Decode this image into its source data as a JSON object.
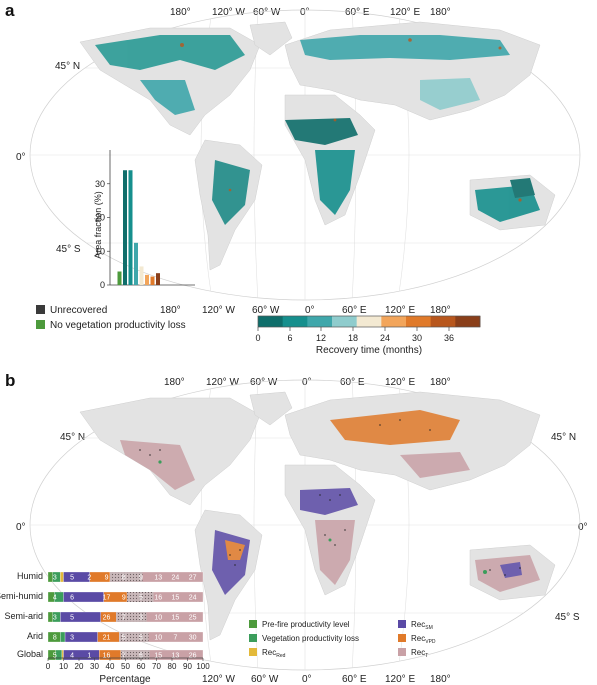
{
  "panel_a": {
    "letter": "a",
    "top_lon_labels": [
      "180°",
      "120° W",
      "60° W",
      "0°",
      "60° E",
      "120° E",
      "180°"
    ],
    "bottom_lon_labels": [
      "180°",
      "120° W",
      "60° W",
      "0°",
      "60° E",
      "120° E",
      "180°"
    ],
    "lat_labels": [
      "45° N",
      "0°",
      "45° S"
    ],
    "legend": {
      "unrecovered": "Unrecovered",
      "no_loss": "No vegetation productivity loss"
    },
    "colorbar": {
      "ticks": [
        "0",
        "6",
        "12",
        "18",
        "24",
        "30",
        "36"
      ],
      "label": "Recovery time (months)",
      "colors": [
        "#0f6e6b",
        "#168f8d",
        "#3fa7ab",
        "#8fcccd",
        "#f3e9d2",
        "#f2a55b",
        "#e07a2a",
        "#b8571d",
        "#8a3f1a"
      ]
    }
  },
  "panel_b": {
    "letter": "b",
    "top_lon_labels": [
      "180°",
      "120° W",
      "60° W",
      "0°",
      "60° E",
      "120° E",
      "180°"
    ],
    "bottom_lon_labels": [
      "120° W",
      "60° W",
      "0°",
      "60° E",
      "120° E",
      "180°"
    ],
    "lat_labels_left": [
      "45° N",
      "0°"
    ],
    "lat_labels_right": [
      "45° N",
      "0°",
      "45° S"
    ],
    "legend": {
      "pre_fire": "Pre-fire productivity level",
      "veg_loss": "Vegetation productivity loss",
      "rec_red": "Rec",
      "rec_red_sub": "Red",
      "rec_sm": "Rec",
      "rec_sm_sub": "SM",
      "rec_vpd": "Rec",
      "rec_vpd_sub": "VPD",
      "rec_t": "Rec",
      "rec_t_sub": "T"
    },
    "colors": {
      "pre_fire": "#4d9a3c",
      "veg_loss": "#3b9d5b",
      "rec_red": "#e3b93a",
      "rec_sm": "#5a4aa5",
      "rec_vpd": "#e07a2a",
      "rec_t": "#c9a1a6"
    },
    "xaxis_label": "Percentage",
    "xticks": [
      "0",
      "10",
      "20",
      "30",
      "40",
      "50",
      "60",
      "70",
      "80",
      "90",
      "100"
    ]
  },
  "chart_data": [
    {
      "type": "bar",
      "title": "",
      "xlabel": "",
      "ylabel": "Area fraction (%)",
      "ylim": [
        0,
        40
      ],
      "yticks": [
        0,
        10,
        20,
        30
      ],
      "categories": [
        "Unrecovered",
        "No vegetation productivity loss",
        "0-6",
        "6-12",
        "12-18",
        "18-24",
        "24-30",
        "30-36",
        ">36"
      ],
      "values": [
        0,
        4,
        34,
        34,
        12.5,
        5.5,
        3,
        2.5,
        3.5
      ]
    },
    {
      "type": "bar",
      "orientation": "horizontal-stacked",
      "xlabel": "Percentage",
      "xlim": [
        0,
        100
      ],
      "categories": [
        "Humid",
        "Semi-humid",
        "Semi-arid",
        "Arid",
        "Global"
      ],
      "series": [
        {
          "name": "Pre-fire productivity level",
          "values": [
            3,
            4,
            3,
            8,
            5
          ]
        },
        {
          "name": "Vegetation productivity loss",
          "values": [
            5,
            6,
            5,
            3,
            4
          ]
        },
        {
          "name": "RecRed",
          "values": [
            2,
            0,
            0,
            0,
            1
          ]
        },
        {
          "name": "RecSM",
          "values": [
            17,
            26,
            26,
            21,
            23
          ]
        },
        {
          "name": "RecVPD",
          "values": [
            13,
            15,
            10,
            14,
            14
          ]
        },
        {
          "name": "RecT",
          "values": [
            60,
            49,
            56,
            54,
            53
          ]
        }
      ],
      "labels": [
        [
          "3",
          "5",
          "2",
          "9",
          "8",
          "9",
          "13",
          "24",
          "27"
        ],
        [
          "4",
          "6",
          "",
          "17",
          "9",
          "5",
          "16",
          "15",
          "24"
        ],
        [
          "3",
          "5",
          "",
          "26",
          "7",
          "3",
          "10",
          "15",
          "25"
        ],
        [
          "8",
          "3",
          "",
          "21",
          "5",
          "5",
          "10",
          "7",
          "30"
        ],
        [
          "5",
          "4",
          "1",
          "16",
          "7",
          "6",
          "15",
          "13",
          "26"
        ]
      ]
    }
  ]
}
